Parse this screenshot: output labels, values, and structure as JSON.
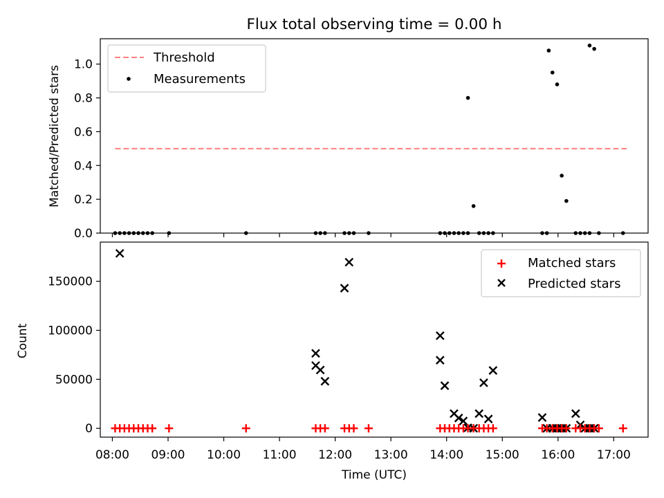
{
  "figure": {
    "title": "Flux total observing time = 0.00 h"
  },
  "chart_data": [
    {
      "type": "scatter",
      "title": "Flux total observing time = 0.00 h",
      "xlabel": "",
      "ylabel": "Matched/Predicted stars",
      "xlim": [
        "07:47",
        "17:37"
      ],
      "ylim": [
        0,
        1.15
      ],
      "yticks": [
        0.0,
        0.2,
        0.4,
        0.6,
        0.8,
        1.0
      ],
      "ytick_labels": [
        "0.0",
        "0.2",
        "0.4",
        "0.6",
        "0.8",
        "1.0"
      ],
      "legend": {
        "placement": "upper-left",
        "entries": [
          "Threshold",
          "Measurements"
        ]
      },
      "threshold": {
        "name": "Threshold",
        "y": 0.5,
        "x_start": "08:03",
        "x_end": "17:14",
        "color": "#ff7f7f",
        "style": "dashed"
      },
      "series": [
        {
          "name": "Measurements",
          "color": "#000000",
          "marker": "dot",
          "points": [
            [
              "08:03",
              0.0
            ],
            [
              "08:08",
              0.0
            ],
            [
              "08:13",
              0.0
            ],
            [
              "08:18",
              0.0
            ],
            [
              "08:23",
              0.0
            ],
            [
              "08:28",
              0.0
            ],
            [
              "08:33",
              0.0
            ],
            [
              "08:38",
              0.0
            ],
            [
              "08:43",
              0.0
            ],
            [
              "09:01",
              0.0
            ],
            [
              "10:24",
              0.0
            ],
            [
              "11:39",
              0.0
            ],
            [
              "11:44",
              0.0
            ],
            [
              "11:49",
              0.0
            ],
            [
              "12:10",
              0.0
            ],
            [
              "12:15",
              0.0
            ],
            [
              "12:20",
              0.0
            ],
            [
              "12:36",
              0.0
            ],
            [
              "13:53",
              0.0
            ],
            [
              "13:58",
              0.0
            ],
            [
              "14:03",
              0.0
            ],
            [
              "14:08",
              0.0
            ],
            [
              "14:13",
              0.0
            ],
            [
              "14:18",
              0.0
            ],
            [
              "14:23",
              0.0
            ],
            [
              "14:23",
              0.8
            ],
            [
              "14:29",
              0.16
            ],
            [
              "14:35",
              0.0
            ],
            [
              "14:40",
              0.0
            ],
            [
              "14:45",
              0.0
            ],
            [
              "14:50",
              0.0
            ],
            [
              "15:43",
              0.0
            ],
            [
              "15:48",
              0.0
            ],
            [
              "15:50",
              1.08
            ],
            [
              "15:54",
              0.95
            ],
            [
              "15:59",
              0.88
            ],
            [
              "16:04",
              0.34
            ],
            [
              "16:09",
              0.19
            ],
            [
              "16:19",
              0.0
            ],
            [
              "16:24",
              0.0
            ],
            [
              "16:29",
              0.0
            ],
            [
              "16:34",
              0.0
            ],
            [
              "16:34",
              1.11
            ],
            [
              "16:39",
              1.09
            ],
            [
              "16:44",
              0.0
            ],
            [
              "17:10",
              0.0
            ]
          ]
        }
      ]
    },
    {
      "type": "scatter",
      "title": "",
      "xlabel": "Time (UTC)",
      "ylabel": "Count",
      "xlim": [
        "07:47",
        "17:37"
      ],
      "ylim": [
        -9000,
        190000
      ],
      "yticks": [
        0,
        50000,
        100000,
        150000
      ],
      "ytick_labels": [
        "0",
        "50000",
        "100000",
        "150000"
      ],
      "xticks": [
        "08:00",
        "09:00",
        "10:00",
        "11:00",
        "12:00",
        "13:00",
        "14:00",
        "15:00",
        "16:00",
        "17:00"
      ],
      "xtick_labels": [
        "08:00",
        "09:00",
        "10:00",
        "11:00",
        "12:00",
        "13:00",
        "14:00",
        "15:00",
        "16:00",
        "17:00"
      ],
      "legend": {
        "placement": "upper-right",
        "entries": [
          "Matched stars",
          "Predicted stars"
        ]
      },
      "series": [
        {
          "name": "Matched stars",
          "color": "#ff0000",
          "marker": "plus",
          "points": [
            [
              "08:03",
              0
            ],
            [
              "08:08",
              0
            ],
            [
              "08:13",
              0
            ],
            [
              "08:18",
              0
            ],
            [
              "08:23",
              0
            ],
            [
              "08:28",
              0
            ],
            [
              "08:33",
              0
            ],
            [
              "08:38",
              0
            ],
            [
              "08:43",
              0
            ],
            [
              "09:01",
              0
            ],
            [
              "10:24",
              0
            ],
            [
              "11:39",
              0
            ],
            [
              "11:44",
              0
            ],
            [
              "11:49",
              0
            ],
            [
              "12:10",
              0
            ],
            [
              "12:15",
              0
            ],
            [
              "12:20",
              0
            ],
            [
              "12:36",
              0
            ],
            [
              "13:53",
              0
            ],
            [
              "13:58",
              0
            ],
            [
              "14:03",
              0
            ],
            [
              "14:08",
              0
            ],
            [
              "14:13",
              0
            ],
            [
              "14:18",
              0
            ],
            [
              "14:23",
              0
            ],
            [
              "14:29",
              0
            ],
            [
              "14:35",
              0
            ],
            [
              "14:40",
              0
            ],
            [
              "14:45",
              0
            ],
            [
              "14:50",
              0
            ],
            [
              "15:43",
              0
            ],
            [
              "15:48",
              0
            ],
            [
              "15:54",
              0
            ],
            [
              "15:59",
              0
            ],
            [
              "16:04",
              0
            ],
            [
              "16:09",
              0
            ],
            [
              "16:19",
              0
            ],
            [
              "16:24",
              0
            ],
            [
              "16:29",
              0
            ],
            [
              "16:34",
              0
            ],
            [
              "16:39",
              0
            ],
            [
              "16:44",
              0
            ],
            [
              "17:10",
              0
            ]
          ]
        },
        {
          "name": "Predicted stars",
          "color": "#000000",
          "marker": "x",
          "points": [
            [
              "08:08",
              178500
            ],
            [
              "11:39",
              76500
            ],
            [
              "11:39",
              64000
            ],
            [
              "11:44",
              59500
            ],
            [
              "11:49",
              48000
            ],
            [
              "12:10",
              143000
            ],
            [
              "12:15",
              169500
            ],
            [
              "13:53",
              94500
            ],
            [
              "13:53",
              69500
            ],
            [
              "13:58",
              43500
            ],
            [
              "14:08",
              15000
            ],
            [
              "14:13",
              10500
            ],
            [
              "14:18",
              7500
            ],
            [
              "14:23",
              500
            ],
            [
              "14:29",
              0
            ],
            [
              "14:35",
              15000
            ],
            [
              "14:40",
              46500
            ],
            [
              "14:45",
              9500
            ],
            [
              "14:50",
              59000
            ],
            [
              "15:43",
              11000
            ],
            [
              "15:48",
              0
            ],
            [
              "15:54",
              0
            ],
            [
              "15:59",
              0
            ],
            [
              "16:04",
              0
            ],
            [
              "16:09",
              0
            ],
            [
              "16:19",
              15000
            ],
            [
              "16:24",
              3500
            ],
            [
              "16:29",
              0
            ],
            [
              "16:34",
              0
            ],
            [
              "16:39",
              0
            ]
          ]
        }
      ]
    }
  ]
}
